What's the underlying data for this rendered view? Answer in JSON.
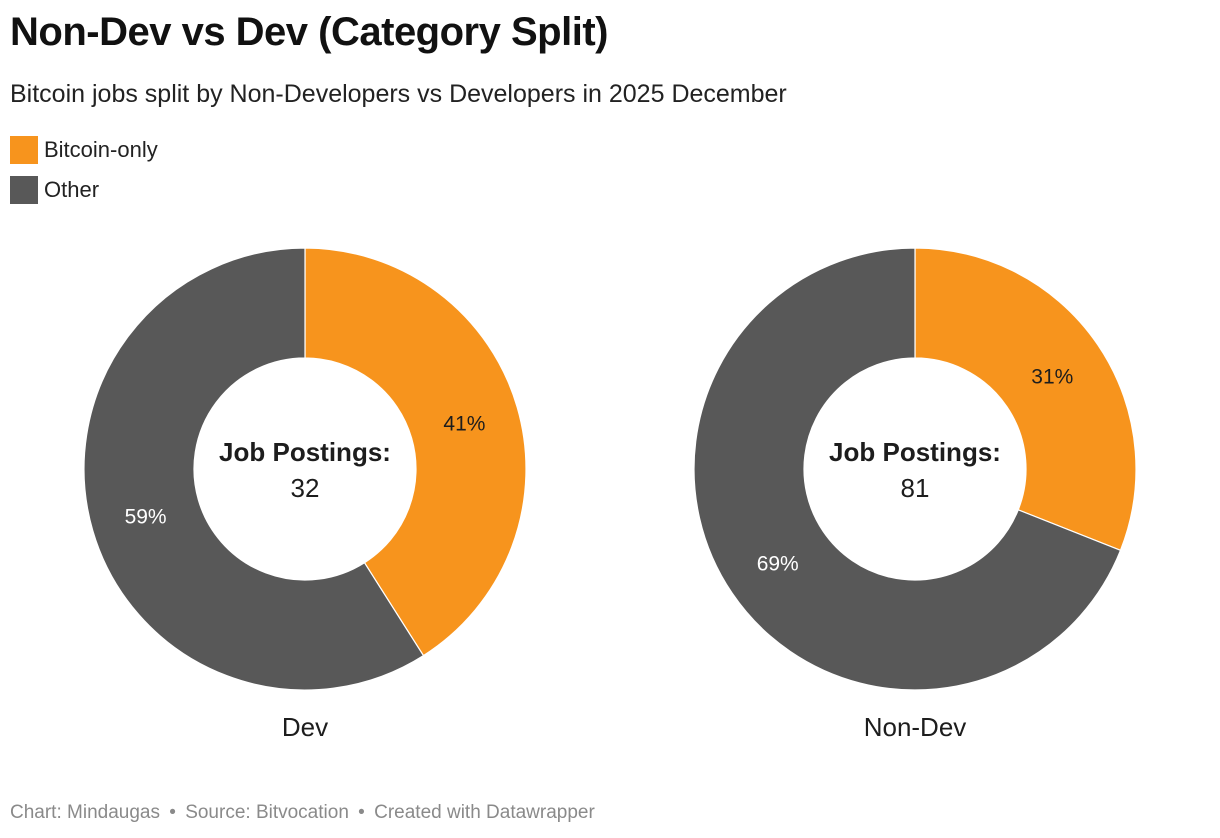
{
  "title": "Non-Dev vs Dev (Category Split)",
  "subtitle": "Bitcoin jobs split by Non-Developers vs Developers in 2025 December",
  "legend": [
    {
      "label": "Bitcoin-only",
      "color": "#f7941d"
    },
    {
      "label": "Other",
      "color": "#585858"
    }
  ],
  "footer": {
    "chart": "Chart: Mindaugas",
    "source": "Source: Bitvocation",
    "created": "Created with Datawrapper",
    "separator": "•"
  },
  "chart_data": [
    {
      "type": "pie",
      "name": "Dev",
      "center_label": "Job Postings:",
      "center_value": "32",
      "slices": [
        {
          "label": "Bitcoin-only",
          "value": 41,
          "display": "41%",
          "color": "#f7941d"
        },
        {
          "label": "Other",
          "value": 59,
          "display": "59%",
          "color": "#585858"
        }
      ]
    },
    {
      "type": "pie",
      "name": "Non-Dev",
      "center_label": "Job Postings:",
      "center_value": "81",
      "slices": [
        {
          "label": "Bitcoin-only",
          "value": 31,
          "display": "31%",
          "color": "#f7941d"
        },
        {
          "label": "Other",
          "value": 69,
          "display": "69%",
          "color": "#585858"
        }
      ]
    }
  ]
}
